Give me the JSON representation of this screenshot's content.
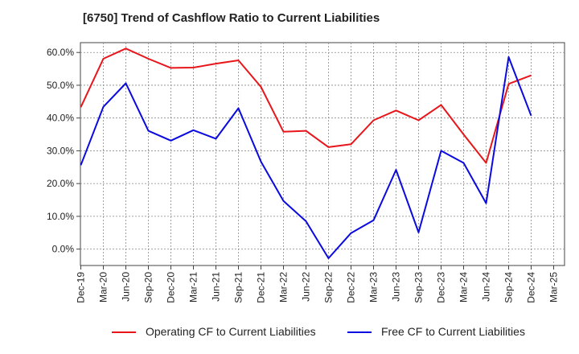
{
  "chart_data": {
    "type": "line",
    "title": "[6750]  Trend of Cashflow Ratio to Current Liabilities",
    "x": [
      "Dec-19",
      "Mar-20",
      "Jun-20",
      "Sep-20",
      "Dec-20",
      "Mar-21",
      "Jun-21",
      "Sep-21",
      "Dec-21",
      "Mar-22",
      "Jun-22",
      "Sep-22",
      "Dec-22",
      "Mar-23",
      "Jun-23",
      "Sep-23",
      "Dec-23",
      "Mar-24",
      "Jun-24",
      "Sep-24",
      "Dec-24",
      "Mar-25"
    ],
    "ylim": [
      -5,
      63
    ],
    "yticks": [
      0,
      10,
      20,
      30,
      40,
      50,
      60
    ],
    "ytick_labels": [
      "0.0%",
      "10.0%",
      "20.0%",
      "30.0%",
      "40.0%",
      "50.0%",
      "60.0%"
    ],
    "grid": true,
    "legend_position": "bottom",
    "series": [
      {
        "name": "Operating CF to Current Liabilities",
        "color": "#e8161b",
        "values": [
          43.3,
          58.1,
          61.2,
          58.1,
          55.3,
          55.4,
          56.6,
          57.6,
          49.5,
          35.8,
          36.1,
          31.1,
          32.0,
          39.3,
          42.3,
          39.3,
          44.0,
          35.0,
          26.3,
          50.4,
          53.0,
          null
        ]
      },
      {
        "name": "Free CF to Current Liabilities",
        "color": "#0a0ae0",
        "values": [
          25.6,
          43.4,
          50.6,
          36.1,
          33.1,
          36.3,
          33.7,
          43.0,
          26.7,
          14.7,
          8.5,
          -2.8,
          4.9,
          8.8,
          24.2,
          5.1,
          30.0,
          26.3,
          14.0,
          58.6,
          40.7,
          null
        ]
      }
    ]
  }
}
